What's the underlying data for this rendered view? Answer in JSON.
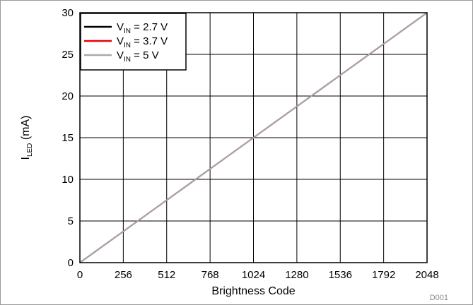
{
  "chart_data": {
    "type": "line",
    "xlabel": "Brightness Code",
    "ylabel": {
      "main": "I",
      "sub": "LED",
      "unit": " (mA)"
    },
    "xlim": [
      0,
      2048
    ],
    "ylim": [
      0,
      30
    ],
    "xticks": [
      0,
      256,
      512,
      768,
      1024,
      1280,
      1536,
      1792,
      2048
    ],
    "yticks": [
      0,
      5,
      10,
      15,
      20,
      25,
      30
    ],
    "grid": true,
    "legend_position": "top-left",
    "series": [
      {
        "name": {
          "main": "V",
          "sub": "IN",
          "rest": " = 2.7 V"
        },
        "color": "#000000",
        "x": [
          0,
          256,
          512,
          768,
          1024,
          1280,
          1536,
          1792,
          2048
        ],
        "y": [
          0,
          3.75,
          7.5,
          11.25,
          15.0,
          18.75,
          22.5,
          26.25,
          30.0
        ]
      },
      {
        "name": {
          "main": "V",
          "sub": "IN",
          "rest": " = 3.7 V"
        },
        "color": "#e8000b",
        "x": [
          0,
          256,
          512,
          768,
          1024,
          1280,
          1536,
          1792,
          2048
        ],
        "y": [
          0,
          3.75,
          7.5,
          11.25,
          15.0,
          18.75,
          22.5,
          26.25,
          30.0
        ]
      },
      {
        "name": {
          "main": "V",
          "sub": "IN",
          "rest": " = 5 V"
        },
        "color": "#a9a9a9",
        "x": [
          0,
          256,
          512,
          768,
          1024,
          1280,
          1536,
          1792,
          2048
        ],
        "y": [
          0,
          3.75,
          7.5,
          11.25,
          15.0,
          18.75,
          22.5,
          26.25,
          30.0
        ]
      }
    ],
    "annotation": "D001"
  }
}
